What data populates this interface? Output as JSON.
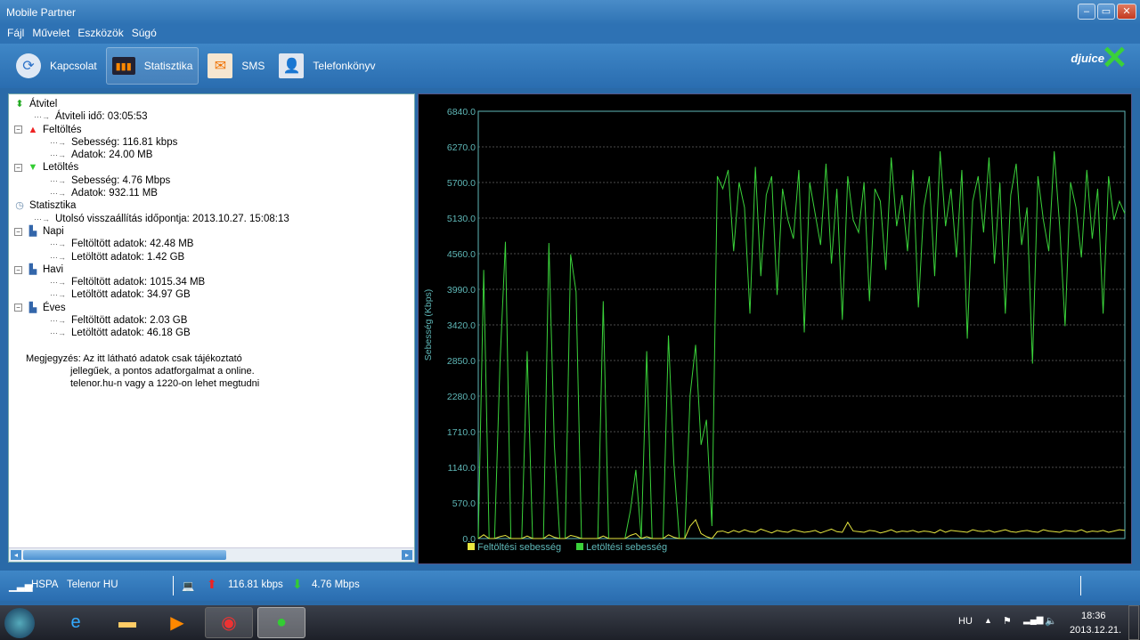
{
  "window": {
    "title": "Mobile Partner"
  },
  "menu": [
    "Fájl",
    "Művelet",
    "Eszközök",
    "Súgó"
  ],
  "toolbar": [
    {
      "label": "Kapcsolat",
      "icon": "refresh-icon"
    },
    {
      "label": "Statisztika",
      "icon": "monitor-chart-icon",
      "active": true
    },
    {
      "label": "SMS",
      "icon": "envelope-icon"
    },
    {
      "label": "Telefonkönyv",
      "icon": "contact-book-icon"
    }
  ],
  "brand": "djuice",
  "tree": {
    "atvitel": "Átvitel",
    "ido": "Átviteli idő: 03:05:53",
    "feltoltes": "Feltöltés",
    "fel_seb": "Sebesség: 116.81 kbps",
    "fel_adat": "Adatok: 24.00 MB",
    "letoltes": "Letöltés",
    "le_seb": "Sebesség: 4.76 Mbps",
    "le_adat": "Adatok: 932.11 MB",
    "statisztika": "Statisztika",
    "reset": "Utolsó visszaállítás időpontja: 2013.10.27. 15:08:13",
    "napi": "Napi",
    "napi_fel": "Feltöltött adatok: 42.48 MB",
    "napi_le": "Letöltött adatok: 1.42 GB",
    "havi": "Havi",
    "havi_fel": "Feltöltött adatok: 1015.34 MB",
    "havi_le": "Letöltött adatok: 34.97 GB",
    "eves": "Éves",
    "eves_fel": "Feltöltött adatok: 2.03 GB",
    "eves_le": "Letöltött adatok: 46.18 GB"
  },
  "note": [
    "Megjegyzés: Az itt látható adatok csak tájékoztató",
    "jellegűek, a pontos adatforgalmat a online.",
    "telenor.hu-n vagy a 1220-on lehet megtudni"
  ],
  "chart_data": {
    "type": "line",
    "ylabel": "Sebesség (Kbps)",
    "ylim": [
      0,
      6840
    ],
    "yticks": [
      "0.0",
      "570.0",
      "1140.0",
      "1710.0",
      "2280.0",
      "2850.0",
      "3420.0",
      "3990.0",
      "4560.0",
      "5130.0",
      "5700.0",
      "6270.0",
      "6840.0"
    ],
    "grid": true,
    "legend": "bottom-left",
    "colors": {
      "upload": "#e8e840",
      "download": "#3ad13a",
      "axis": "#5fb8b8"
    },
    "series": [
      {
        "name": "Feltöltési sebesség",
        "values": [
          0,
          60,
          0,
          0,
          30,
          50,
          0,
          0,
          0,
          40,
          0,
          0,
          0,
          60,
          20,
          0,
          0,
          50,
          30,
          0,
          0,
          0,
          0,
          40,
          0,
          0,
          0,
          0,
          50,
          80,
          0,
          30,
          0,
          0,
          0,
          60,
          20,
          0,
          0,
          200,
          300,
          80,
          30,
          0,
          110,
          120,
          90,
          130,
          100,
          140,
          110,
          100,
          150,
          120,
          90,
          130,
          110,
          100,
          140,
          120,
          100,
          110,
          130,
          90,
          120,
          150,
          110,
          100,
          260,
          120,
          110,
          100,
          130,
          120,
          90,
          110,
          140,
          100,
          120,
          110,
          130,
          100,
          120,
          110,
          90,
          140,
          100,
          130,
          120,
          110,
          100,
          140,
          120,
          110,
          130,
          100,
          120,
          140,
          110,
          100,
          120,
          130,
          110,
          100,
          140,
          120,
          110,
          100,
          130,
          120,
          110,
          140,
          100,
          120,
          110,
          130,
          100,
          120,
          140,
          130
        ]
      },
      {
        "name": "Letöltési sebesség",
        "values": [
          0,
          4300,
          0,
          0,
          2800,
          4750,
          0,
          0,
          0,
          3000,
          0,
          0,
          0,
          4730,
          1500,
          0,
          0,
          4550,
          3950,
          0,
          0,
          0,
          0,
          3800,
          0,
          0,
          0,
          0,
          450,
          1100,
          0,
          3000,
          0,
          0,
          0,
          3250,
          1200,
          0,
          0,
          2300,
          3100,
          1500,
          1900,
          200,
          5800,
          5600,
          5900,
          4600,
          5700,
          5300,
          3600,
          5950,
          4200,
          5500,
          5800,
          3900,
          5600,
          5100,
          4800,
          5900,
          3300,
          5700,
          5200,
          4700,
          6000,
          4400,
          5600,
          3500,
          5800,
          5100,
          4900,
          5700,
          3800,
          5600,
          5400,
          4300,
          6100,
          5000,
          5500,
          4600,
          5900,
          3700,
          5300,
          5800,
          4200,
          6200,
          5000,
          5600,
          4500,
          5900,
          3200,
          5400,
          5800,
          4900,
          6100,
          4400,
          5700,
          3600,
          5500,
          6000,
          4700,
          5300,
          2800,
          5800,
          5100,
          4600,
          6200,
          5000,
          3400,
          5700,
          5300,
          4500,
          5900,
          4800,
          5600,
          3600,
          5800,
          5100,
          5400,
          5200
        ]
      }
    ]
  },
  "statusbar": {
    "network": "HSPA",
    "operator": "Telenor HU",
    "up": "116.81 kbps",
    "down": "4.76 Mbps"
  },
  "taskbar": {
    "lang": "HU",
    "time": "18:36",
    "date": "2013.12.21."
  }
}
